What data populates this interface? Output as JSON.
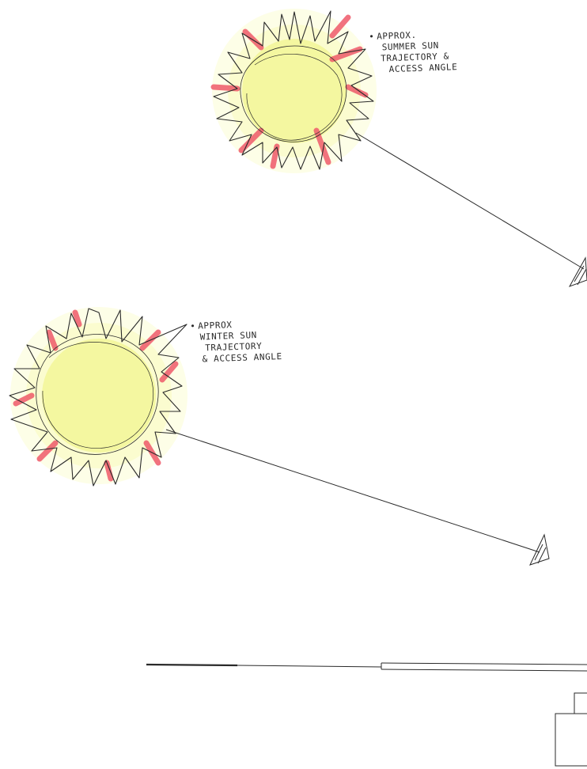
{
  "annotations": {
    "summer": {
      "lines": [
        "APPROX.",
        "SUMMER SUN",
        "TRAJECTORY &",
        "ACCESS ANGLE"
      ],
      "bullet": "•"
    },
    "winter": {
      "lines": [
        "APPROX",
        "WINTER SUN",
        "TRAJECTORY",
        "& ACCESS ANGLE"
      ],
      "bullet": "•"
    }
  },
  "colors": {
    "ink": "#2a2a2a",
    "sun_fill": "#f4f7a0",
    "sun_halo": "#fbfccf",
    "sun_accent": "#ef5a6a",
    "paper": "#ffffff"
  },
  "icons": {
    "summer_sun": "sun-icon",
    "winter_sun": "sun-icon",
    "summer_arrowhead": "arrowhead-icon",
    "winter_arrowhead": "arrowhead-icon"
  }
}
